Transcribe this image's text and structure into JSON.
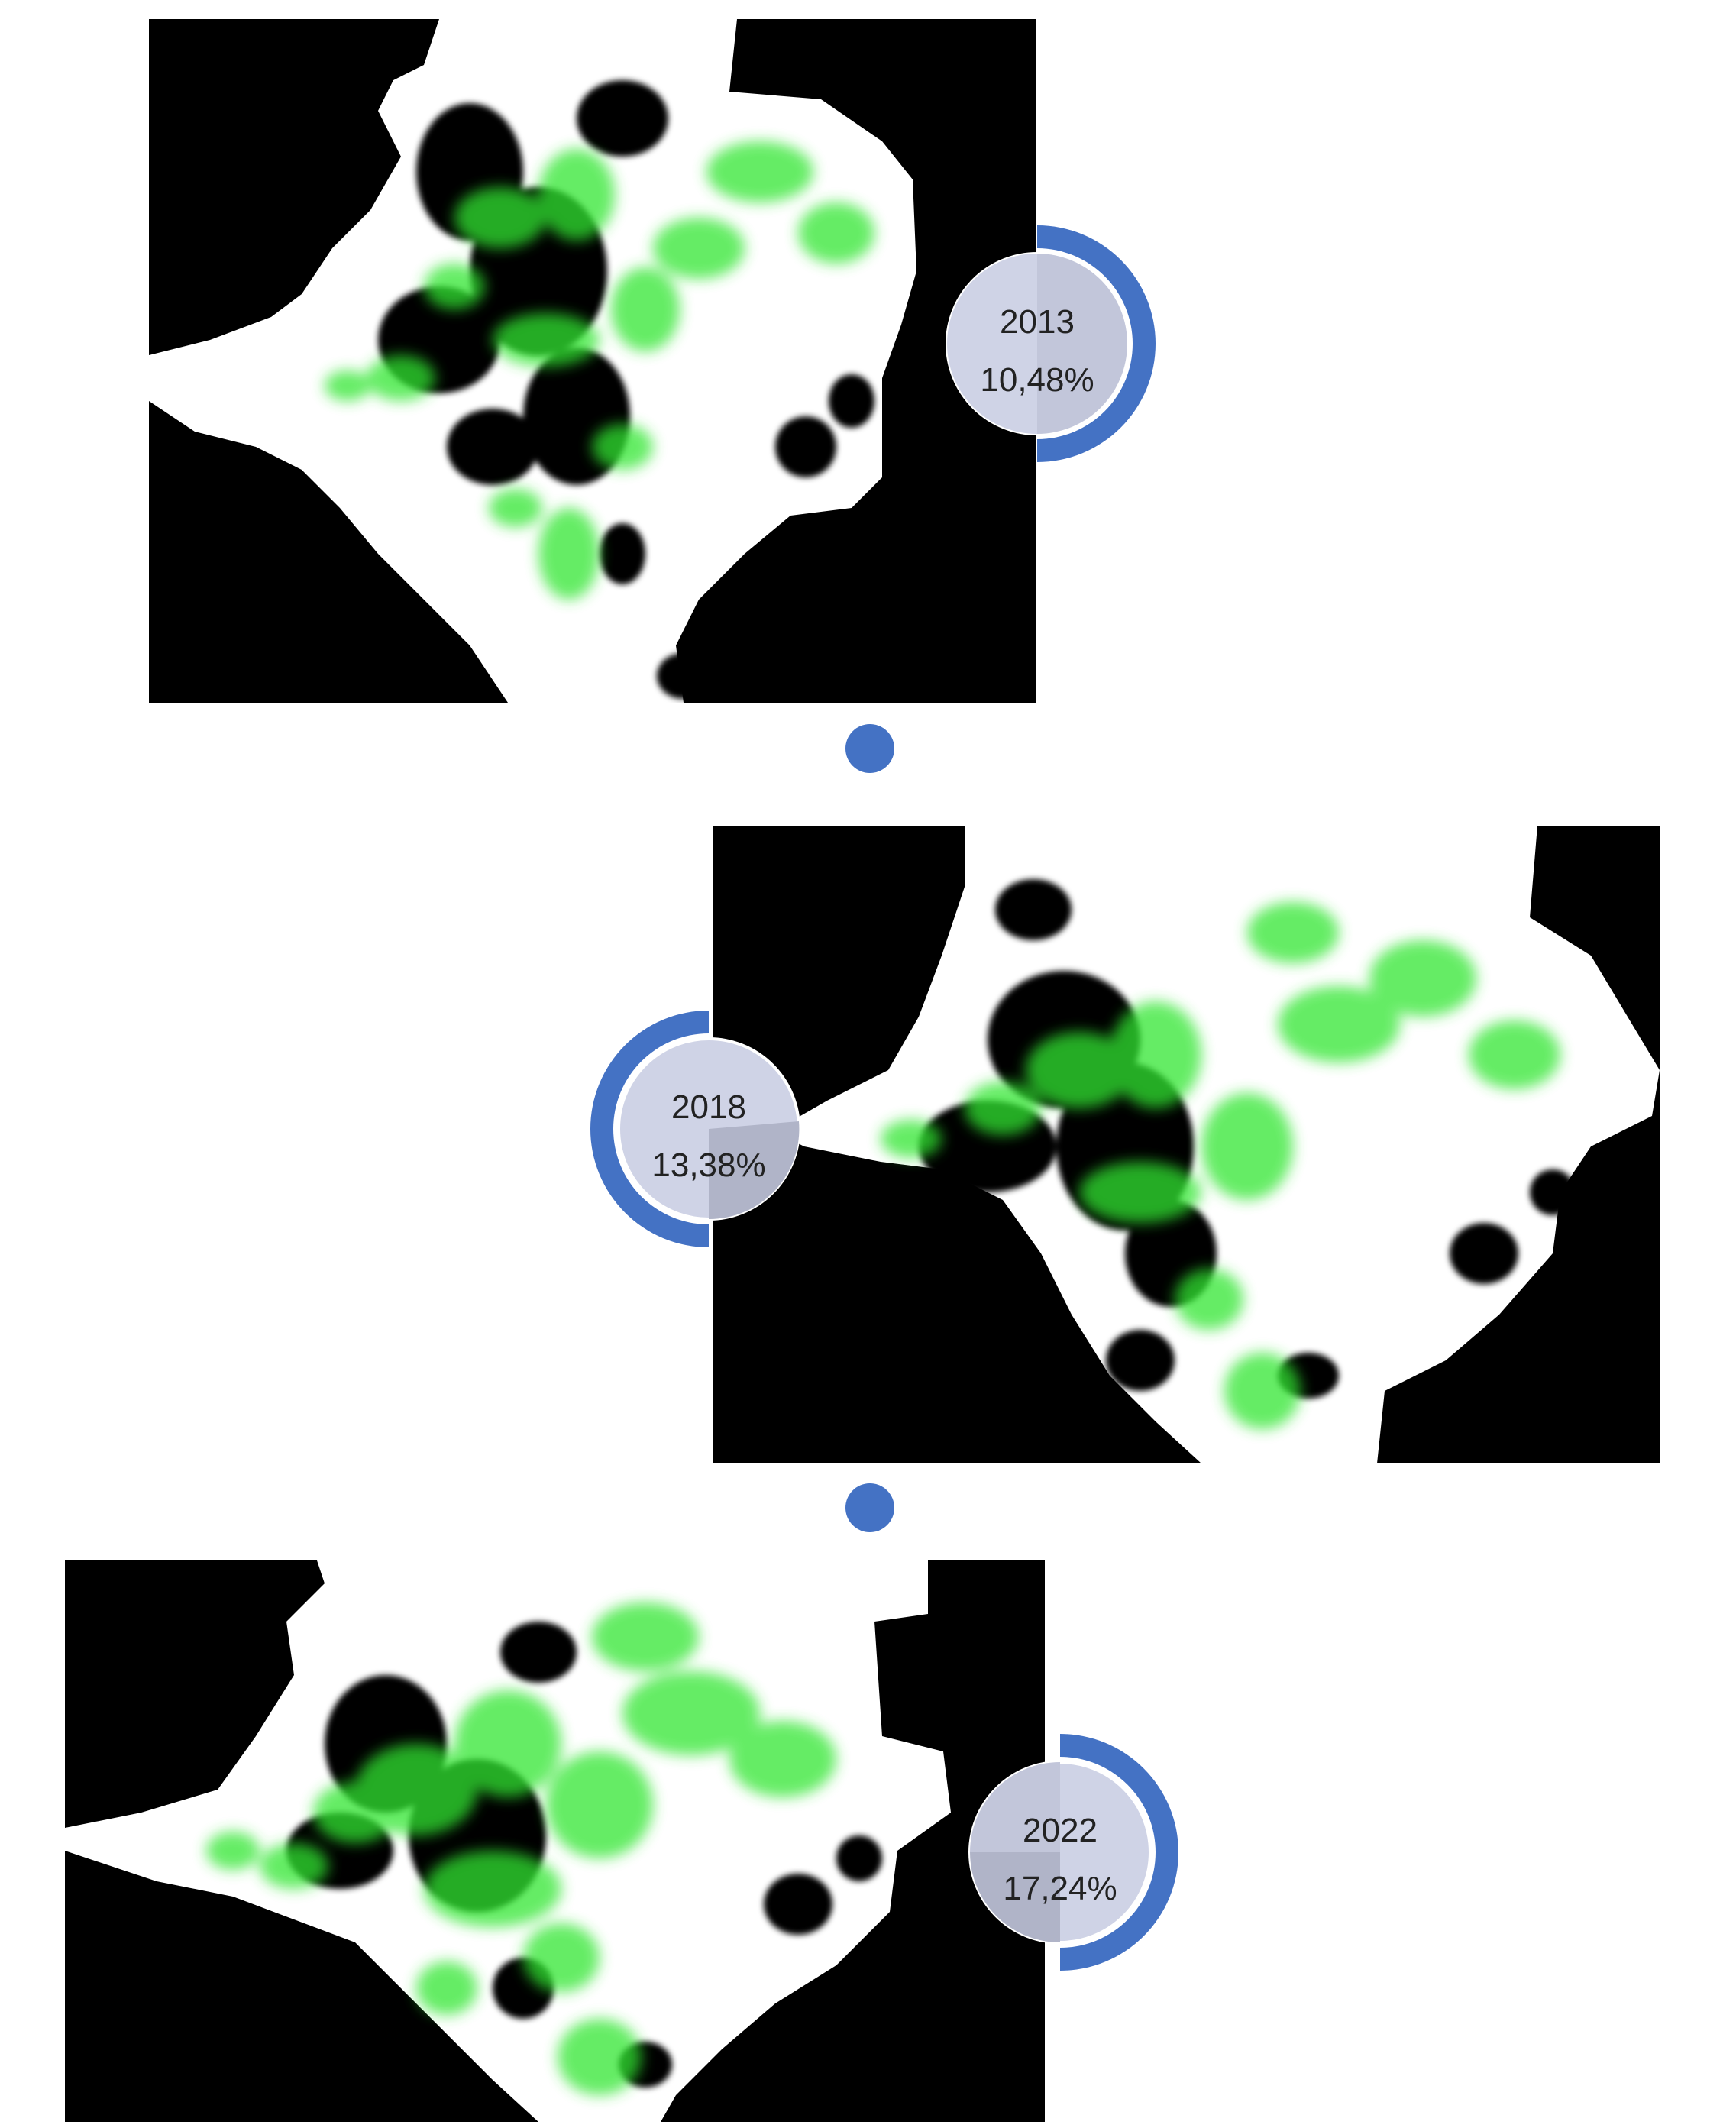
{
  "timeline": [
    {
      "year": "2013",
      "percentage": "10,48%",
      "share": 0.1048
    },
    {
      "year": "2018",
      "percentage": "13,38%",
      "share": 0.1338
    },
    {
      "year": "2022",
      "percentage": "17,24%",
      "share": 0.1724
    }
  ],
  "colors": {
    "map_background": "#000000",
    "built_area": "#ffffff",
    "vegetation": "#33e633",
    "accent_ring": "#4472c4",
    "badge_fill": "#cfd3e6",
    "badge_shade": "#b0b4c8"
  }
}
